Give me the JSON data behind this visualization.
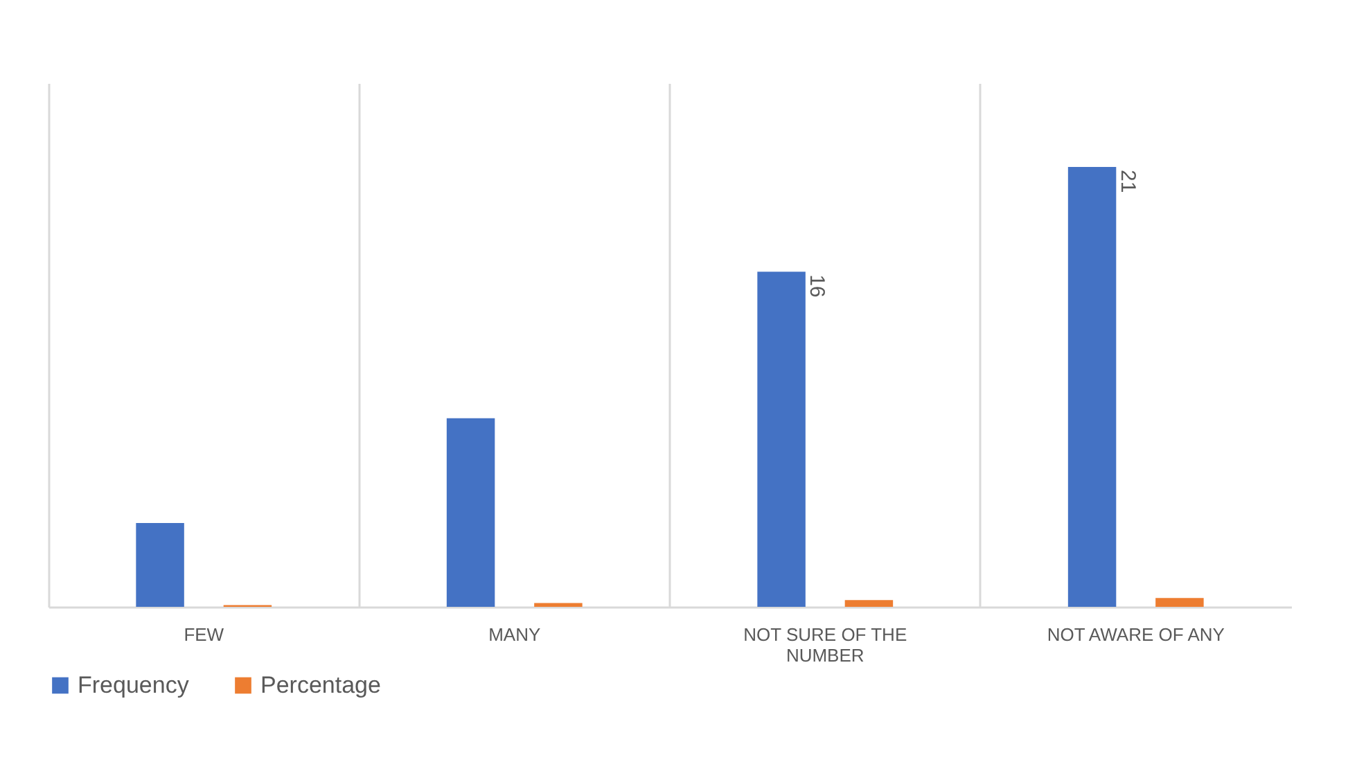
{
  "chart_data": {
    "type": "bar",
    "categories": [
      "FEW",
      "MANY",
      "NOT SURE OF THE NUMBER",
      "NOT AWARE OF ANY"
    ],
    "series": [
      {
        "name": "Frequency",
        "color": "#4472c4",
        "values": [
          4,
          9,
          16,
          21
        ],
        "value_labels": [
          null,
          null,
          "16",
          "21"
        ]
      },
      {
        "name": "Percentage",
        "color": "#ed7d31",
        "values": [
          0.08,
          0.18,
          0.32,
          0.42
        ]
      }
    ],
    "ylim": [
      0,
      25
    ],
    "grid": "x",
    "legend": "bottom"
  }
}
